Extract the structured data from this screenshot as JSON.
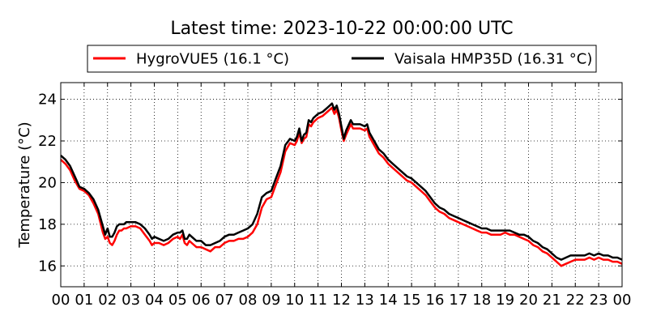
{
  "chart_data": {
    "type": "line",
    "title": "Latest time: 2023-10-22 00:00:00 UTC",
    "xlabel": "",
    "ylabel": "Temperature (°C)",
    "xlim": [
      0,
      24
    ],
    "ylim": [
      15,
      24.8
    ],
    "xticks": [
      "00",
      "01",
      "02",
      "03",
      "04",
      "05",
      "06",
      "07",
      "08",
      "09",
      "10",
      "11",
      "12",
      "13",
      "14",
      "15",
      "16",
      "17",
      "18",
      "19",
      "20",
      "21",
      "22",
      "23",
      "00"
    ],
    "yticks": [
      16,
      18,
      20,
      22,
      24
    ],
    "grid": true,
    "legend_position": "top",
    "series": [
      {
        "name": "HygroVUE5 (16.1 °C)",
        "color": "#ff0000",
        "x": [
          0,
          0.2,
          0.4,
          0.6,
          0.8,
          1.0,
          1.2,
          1.4,
          1.6,
          1.8,
          1.9,
          2.0,
          2.1,
          2.2,
          2.3,
          2.4,
          2.5,
          2.6,
          2.7,
          2.8,
          3.0,
          3.2,
          3.4,
          3.6,
          3.8,
          3.9,
          4.0,
          4.2,
          4.4,
          4.6,
          4.8,
          5.0,
          5.1,
          5.2,
          5.3,
          5.4,
          5.5,
          5.6,
          5.8,
          6.0,
          6.2,
          6.4,
          6.6,
          6.8,
          7.0,
          7.2,
          7.4,
          7.6,
          7.8,
          8.0,
          8.2,
          8.4,
          8.6,
          8.8,
          9.0,
          9.2,
          9.4,
          9.6,
          9.8,
          10.0,
          10.1,
          10.2,
          10.3,
          10.4,
          10.5,
          10.6,
          10.7,
          10.8,
          11.0,
          11.2,
          11.4,
          11.5,
          11.6,
          11.7,
          11.8,
          11.9,
          12.0,
          12.1,
          12.2,
          12.4,
          12.5,
          12.6,
          12.8,
          13.0,
          13.1,
          13.2,
          13.4,
          13.6,
          13.8,
          14.0,
          14.2,
          14.4,
          14.6,
          14.8,
          15.0,
          15.2,
          15.4,
          15.6,
          15.8,
          16.0,
          16.2,
          16.4,
          16.6,
          16.8,
          17.0,
          17.2,
          17.4,
          17.6,
          17.8,
          18.0,
          18.2,
          18.4,
          18.6,
          18.8,
          19.0,
          19.2,
          19.4,
          19.6,
          19.8,
          20.0,
          20.2,
          20.4,
          20.6,
          20.8,
          21.0,
          21.2,
          21.4,
          21.6,
          21.8,
          22.0,
          22.2,
          22.4,
          22.6,
          22.8,
          23.0,
          23.2,
          23.4,
          23.6,
          23.8,
          24.0
        ],
        "values": [
          21.1,
          20.9,
          20.6,
          20.1,
          19.7,
          19.6,
          19.4,
          19.0,
          18.5,
          17.6,
          17.3,
          17.4,
          17.1,
          17.0,
          17.2,
          17.5,
          17.7,
          17.7,
          17.8,
          17.8,
          17.9,
          17.9,
          17.8,
          17.5,
          17.2,
          17.0,
          17.1,
          17.1,
          17.0,
          17.1,
          17.3,
          17.4,
          17.3,
          17.5,
          17.1,
          17.0,
          17.2,
          17.1,
          16.9,
          16.9,
          16.8,
          16.7,
          16.9,
          16.9,
          17.1,
          17.2,
          17.2,
          17.3,
          17.3,
          17.4,
          17.6,
          18.0,
          18.8,
          19.2,
          19.3,
          19.9,
          20.5,
          21.5,
          21.9,
          21.8,
          22.0,
          22.4,
          21.9,
          22.1,
          22.2,
          22.8,
          22.7,
          22.9,
          23.1,
          23.2,
          23.4,
          23.5,
          23.6,
          23.3,
          23.5,
          23.1,
          22.5,
          22.0,
          22.3,
          22.8,
          22.6,
          22.6,
          22.6,
          22.5,
          22.6,
          22.2,
          21.8,
          21.4,
          21.2,
          20.9,
          20.7,
          20.5,
          20.3,
          20.1,
          20.0,
          19.8,
          19.6,
          19.4,
          19.1,
          18.8,
          18.6,
          18.5,
          18.3,
          18.2,
          18.1,
          18.0,
          17.9,
          17.8,
          17.7,
          17.6,
          17.6,
          17.5,
          17.5,
          17.5,
          17.6,
          17.5,
          17.5,
          17.4,
          17.3,
          17.2,
          17.0,
          16.9,
          16.7,
          16.6,
          16.4,
          16.2,
          16.0,
          16.1,
          16.2,
          16.3,
          16.3,
          16.3,
          16.4,
          16.3,
          16.4,
          16.3,
          16.3,
          16.2,
          16.2,
          16.1
        ]
      },
      {
        "name": "Vaisala HMP35D (16.31 °C)",
        "color": "#000000",
        "x": [
          0,
          0.2,
          0.4,
          0.6,
          0.8,
          1.0,
          1.2,
          1.4,
          1.6,
          1.8,
          1.9,
          2.0,
          2.1,
          2.2,
          2.3,
          2.4,
          2.5,
          2.6,
          2.7,
          2.8,
          3.0,
          3.2,
          3.4,
          3.6,
          3.8,
          3.9,
          4.0,
          4.2,
          4.4,
          4.6,
          4.8,
          5.0,
          5.1,
          5.2,
          5.3,
          5.4,
          5.5,
          5.6,
          5.8,
          6.0,
          6.2,
          6.4,
          6.6,
          6.8,
          7.0,
          7.2,
          7.4,
          7.6,
          7.8,
          8.0,
          8.2,
          8.4,
          8.6,
          8.8,
          9.0,
          9.2,
          9.4,
          9.6,
          9.8,
          10.0,
          10.1,
          10.2,
          10.3,
          10.4,
          10.5,
          10.6,
          10.7,
          10.8,
          11.0,
          11.2,
          11.4,
          11.5,
          11.6,
          11.7,
          11.8,
          11.9,
          12.0,
          12.1,
          12.2,
          12.4,
          12.5,
          12.6,
          12.8,
          13.0,
          13.1,
          13.2,
          13.4,
          13.6,
          13.8,
          14.0,
          14.2,
          14.4,
          14.6,
          14.8,
          15.0,
          15.2,
          15.4,
          15.6,
          15.8,
          16.0,
          16.2,
          16.4,
          16.6,
          16.8,
          17.0,
          17.2,
          17.4,
          17.6,
          17.8,
          18.0,
          18.2,
          18.4,
          18.6,
          18.8,
          19.0,
          19.2,
          19.4,
          19.6,
          19.8,
          20.0,
          20.2,
          20.4,
          20.6,
          20.8,
          21.0,
          21.2,
          21.4,
          21.6,
          21.8,
          22.0,
          22.2,
          22.4,
          22.6,
          22.8,
          23.0,
          23.2,
          23.4,
          23.6,
          23.8,
          24.0
        ],
        "values": [
          21.3,
          21.1,
          20.8,
          20.3,
          19.8,
          19.7,
          19.5,
          19.2,
          18.7,
          17.9,
          17.5,
          17.8,
          17.4,
          17.4,
          17.6,
          17.9,
          18.0,
          18.0,
          18.0,
          18.1,
          18.1,
          18.1,
          18.0,
          17.8,
          17.5,
          17.3,
          17.4,
          17.3,
          17.2,
          17.3,
          17.5,
          17.6,
          17.6,
          17.7,
          17.3,
          17.3,
          17.5,
          17.4,
          17.2,
          17.2,
          17.0,
          17.0,
          17.1,
          17.2,
          17.4,
          17.5,
          17.5,
          17.6,
          17.7,
          17.8,
          18.0,
          18.5,
          19.3,
          19.5,
          19.6,
          20.2,
          20.8,
          21.8,
          22.1,
          22.0,
          22.2,
          22.6,
          22.0,
          22.3,
          22.4,
          23.0,
          22.9,
          23.1,
          23.3,
          23.4,
          23.6,
          23.7,
          23.8,
          23.5,
          23.7,
          23.3,
          22.7,
          22.1,
          22.5,
          23.0,
          22.8,
          22.8,
          22.8,
          22.7,
          22.8,
          22.4,
          22.0,
          21.6,
          21.4,
          21.1,
          20.9,
          20.7,
          20.5,
          20.3,
          20.2,
          20.0,
          19.8,
          19.6,
          19.3,
          19.0,
          18.8,
          18.7,
          18.5,
          18.4,
          18.3,
          18.2,
          18.1,
          18.0,
          17.9,
          17.8,
          17.8,
          17.7,
          17.7,
          17.7,
          17.7,
          17.7,
          17.6,
          17.5,
          17.5,
          17.4,
          17.2,
          17.1,
          16.9,
          16.8,
          16.6,
          16.4,
          16.3,
          16.4,
          16.5,
          16.5,
          16.5,
          16.5,
          16.6,
          16.5,
          16.6,
          16.5,
          16.5,
          16.4,
          16.4,
          16.3
        ]
      }
    ]
  }
}
